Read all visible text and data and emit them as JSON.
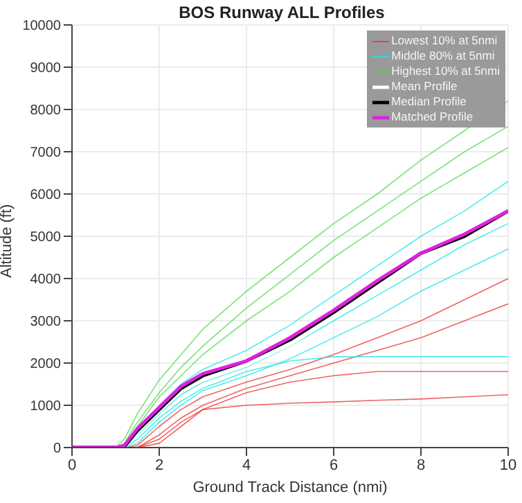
{
  "chart_data": {
    "type": "line",
    "title": "BOS Runway ALL Profiles",
    "xlabel": "Ground Track Distance (nmi)",
    "ylabel": "Altitude (ft)",
    "x": [
      0,
      1,
      1.2,
      1.5,
      2,
      2.5,
      3,
      4,
      5,
      6,
      7,
      8,
      9,
      10
    ],
    "xlim": [
      0,
      10
    ],
    "xticks": [
      0,
      2,
      4,
      6,
      8,
      10
    ],
    "ylim": [
      0,
      10000
    ],
    "yticks": [
      0,
      1000,
      2000,
      3000,
      4000,
      5000,
      6000,
      7000,
      8000,
      9000,
      10000
    ],
    "grid": true,
    "legend": "top right",
    "marker": "none",
    "line_style": "solid",
    "series": [
      {
        "name": "Lowest 10% at 5nmi",
        "color": "#e8322f",
        "values": [
          0,
          0,
          0,
          50,
          500,
          900,
          1200,
          1550,
          1850,
          2200,
          2600,
          3000,
          3500,
          4000
        ]
      },
      {
        "color": "#e8322f",
        "values": [
          0,
          0,
          0,
          0,
          300,
          700,
          1000,
          1400,
          1700,
          2000,
          2300,
          2600,
          3000,
          3400
        ]
      },
      {
        "color": "#e8322f",
        "values": [
          0,
          0,
          0,
          0,
          200,
          600,
          900,
          1300,
          1550,
          1700,
          1800,
          1800,
          1800,
          1800
        ]
      },
      {
        "color": "#e8322f",
        "values": [
          0,
          0,
          0,
          0,
          100,
          500,
          900,
          1000,
          1050,
          1080,
          1120,
          1150,
          1200,
          1250
        ]
      },
      {
        "name": "Highest 10% at 5nmi",
        "color": "#4cd94c",
        "values": [
          0,
          0,
          200,
          800,
          1600,
          2200,
          2800,
          3700,
          4500,
          5300,
          6000,
          6800,
          7500,
          8200
        ]
      },
      {
        "color": "#4cd94c",
        "values": [
          0,
          0,
          100,
          600,
          1300,
          1900,
          2400,
          3300,
          4100,
          4900,
          5600,
          6300,
          7000,
          7600
        ]
      },
      {
        "color": "#4cd94c",
        "values": [
          0,
          0,
          80,
          500,
          1200,
          1700,
          2200,
          3000,
          3700,
          4500,
          5200,
          5900,
          6500,
          7100
        ]
      },
      {
        "name": "Middle 80% at 5nmi",
        "color": "#18e6e6",
        "values": [
          0,
          0,
          50,
          400,
          1000,
          1500,
          1850,
          2300,
          2900,
          3600,
          4300,
          5000,
          5600,
          6300
        ]
      },
      {
        "color": "#18e6e6",
        "values": [
          0,
          0,
          0,
          300,
          800,
          1250,
          1550,
          1900,
          2400,
          3000,
          3600,
          4200,
          4800,
          5300
        ]
      },
      {
        "color": "#18e6e6",
        "values": [
          0,
          0,
          0,
          100,
          600,
          1000,
          1350,
          1700,
          2100,
          2600,
          3100,
          3700,
          4200,
          4700
        ]
      },
      {
        "color": "#18e6e6",
        "values": [
          0,
          0,
          0,
          200,
          700,
          1100,
          1400,
          1800,
          2050,
          2150,
          2150,
          2150,
          2150,
          2150
        ]
      },
      {
        "name": "Mean Profile",
        "color": "#ffffff",
        "values": [
          0,
          0,
          10,
          360,
          860,
          1330,
          1600,
          1950,
          2440,
          3080,
          3770,
          4460,
          4900,
          5480
        ]
      },
      {
        "name": "Median Profile",
        "color": "#000000",
        "values": [
          0,
          0,
          20,
          400,
          900,
          1400,
          1700,
          2050,
          2550,
          3200,
          3900,
          4600,
          5000,
          5600
        ]
      },
      {
        "name": "Matched Profile",
        "color": "#e020e0",
        "values": [
          0,
          0,
          50,
          450,
          950,
          1450,
          1750,
          2050,
          2600,
          3250,
          3950,
          4600,
          5050,
          5600
        ]
      }
    ]
  }
}
